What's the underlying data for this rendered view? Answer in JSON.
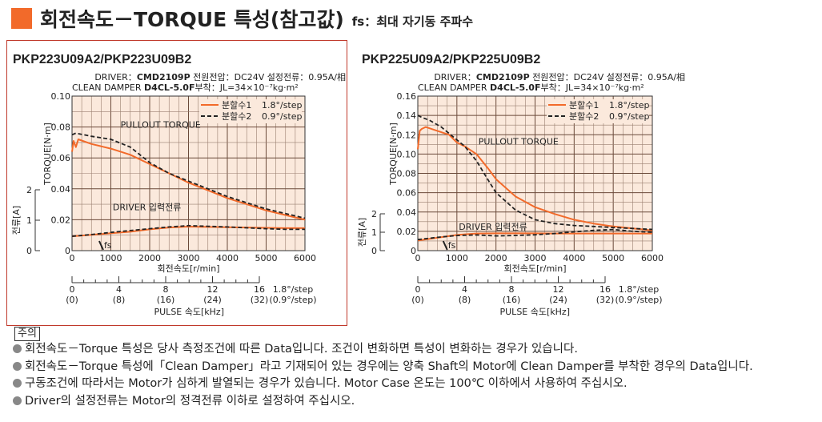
{
  "header": {
    "title": "회전속도－TORQUE 특성(참고값)",
    "subtitle": "fs：최대 자기동 주파수",
    "accent_color": "#f26a2a"
  },
  "notes": {
    "label": "주의",
    "items": [
      "회전속도－Torque 특성은 당사 측정조건에 따른 Data입니다. 조건이 변화하면 특성이 변화하는 경우가 있습니다.",
      "회전속도－Torque 특성에「Clean Damper」라고 기재되어 있는 경우에는 양축 Shaft의 Motor에 Clean Damper를 부착한 경우의 Data입니다.",
      "구동조건에 따라서는 Motor가 심하게 발열되는 경우가 있습니다. Motor Case 온도는 100℃ 이하에서 사용하여 주십시오.",
      "Driver의 설정전류는 Motor의 정격전류 이하로 설정하여 주십시오."
    ]
  },
  "chart_data": [
    {
      "type": "line",
      "title": "PKP223U09A2/PKP223U09B2",
      "driver_line": {
        "label": "DRIVER：",
        "model": "CMD2109P",
        "spec": " 전원전압：DC24V  설정전류：0.95A/相"
      },
      "damper_line": {
        "label": "CLEAN DAMPER ",
        "model": "D4CL-5.0F",
        "spec": "부착：JL=34×10⁻⁷kg·m²"
      },
      "xlabel": "회전속도[r/min]",
      "ylabel": "TORQUE[N·m]",
      "y2label": "전류[A]",
      "xlim": [
        0,
        6000
      ],
      "ylim": [
        0,
        0.1
      ],
      "x_ticks": [
        "0",
        "1000",
        "2000",
        "3000",
        "4000",
        "5000",
        "6000"
      ],
      "y_ticks": [
        "0",
        "0.02",
        "0.04",
        "0.06",
        "0.08",
        "0.10"
      ],
      "y2_ticks": [
        "0",
        "1",
        "2"
      ],
      "legend_position": "top-right",
      "legend": [
        {
          "label": "분할수1",
          "step": "1.8°/step",
          "style": "solid",
          "color": "#f26a2a"
        },
        {
          "label": "분할수2",
          "step": "0.9°/step",
          "style": "dashed",
          "color": "#222222"
        }
      ],
      "annotations": {
        "pullout": "PULLOUT TORQUE",
        "current": "DRIVER 입력전류",
        "fs": "fs"
      },
      "pulse_axis": {
        "label": "PULSE 속도[kHz]",
        "ticks": [
          {
            "a": "0",
            "b": "(0)"
          },
          {
            "a": "4",
            "b": "(8)"
          },
          {
            "a": "8",
            "b": "(16)"
          },
          {
            "a": "12",
            "b": "(24)"
          },
          {
            "a": "16",
            "b": "(32)"
          },
          {
            "a": "1.8°/step",
            "b": "(0.9°/step)"
          }
        ]
      },
      "series": [
        {
          "name": "분할수1",
          "kind": "torque",
          "x": [
            0,
            40,
            100,
            160,
            500,
            1000,
            1500,
            2000,
            2500,
            3000,
            3500,
            4000,
            4500,
            5000,
            5500,
            6000
          ],
          "y": [
            0.064,
            0.071,
            0.067,
            0.072,
            0.069,
            0.066,
            0.062,
            0.056,
            0.05,
            0.044,
            0.039,
            0.034,
            0.03,
            0.026,
            0.023,
            0.02
          ]
        },
        {
          "name": "분할수2",
          "kind": "torque",
          "x": [
            0,
            100,
            500,
            1000,
            1500,
            2000,
            2500,
            3000,
            3500,
            4000,
            4500,
            5000,
            5500,
            6000
          ],
          "y": [
            0.075,
            0.076,
            0.074,
            0.072,
            0.067,
            0.057,
            0.05,
            0.045,
            0.04,
            0.035,
            0.031,
            0.027,
            0.024,
            0.021
          ]
        },
        {
          "name": "분할수1",
          "kind": "current",
          "x": [
            0,
            500,
            1000,
            1500,
            2000,
            2500,
            3000,
            3500,
            4000,
            4500,
            5000,
            5500,
            6000
          ],
          "y": [
            0.47,
            0.52,
            0.57,
            0.62,
            0.7,
            0.76,
            0.79,
            0.78,
            0.77,
            0.76,
            0.75,
            0.74,
            0.74
          ]
        },
        {
          "name": "분할수2",
          "kind": "current",
          "x": [
            0,
            500,
            1000,
            1500,
            2000,
            2500,
            3000,
            3500,
            4000,
            4500,
            5000,
            5500,
            6000
          ],
          "y": [
            0.47,
            0.53,
            0.6,
            0.66,
            0.72,
            0.78,
            0.82,
            0.8,
            0.78,
            0.75,
            0.72,
            0.7,
            0.7
          ]
        }
      ],
      "fs_x": 700
    },
    {
      "type": "line",
      "title": "PKP225U09A2/PKP225U09B2",
      "driver_line": {
        "label": "DRIVER：",
        "model": "CMD2109P",
        "spec": " 전원전압：DC24V  설정전류：0.95A/相"
      },
      "damper_line": {
        "label": "CLEAN DAMPER ",
        "model": "D4CL-5.0F",
        "spec": "부착：JL=34×10⁻⁷kg·m²"
      },
      "xlabel": "회전속도[r/min]",
      "ylabel": "TORQUE[N·m]",
      "y2label": "전류[A]",
      "xlim": [
        0,
        6000
      ],
      "ylim": [
        0,
        0.16
      ],
      "x_ticks": [
        "0",
        "1000",
        "2000",
        "3000",
        "4000",
        "5000",
        "6000"
      ],
      "y_ticks": [
        "0",
        "0.02",
        "0.04",
        "0.06",
        "0.08",
        "0.10",
        "0.12",
        "0.14",
        "0.16"
      ],
      "y2_ticks": [
        "0",
        "1",
        "2"
      ],
      "legend_position": "top-right",
      "legend": [
        {
          "label": "분할수1",
          "step": "1.8°/step",
          "style": "solid",
          "color": "#f26a2a"
        },
        {
          "label": "분할수2",
          "step": "0.9°/step",
          "style": "dashed",
          "color": "#222222"
        }
      ],
      "annotations": {
        "pullout": "PULLOUT TORQUE",
        "current": "DRIVER 입력전류",
        "fs": "fs"
      },
      "pulse_axis": {
        "label": "PULSE 속도[kHz]",
        "ticks": [
          {
            "a": "0",
            "b": "(0)"
          },
          {
            "a": "4",
            "b": "(8)"
          },
          {
            "a": "8",
            "b": "(16)"
          },
          {
            "a": "12",
            "b": "(24)"
          },
          {
            "a": "16",
            "b": "(32)"
          },
          {
            "a": "1.8°/step",
            "b": "(0.9°/step)"
          }
        ]
      },
      "series": [
        {
          "name": "분할수1",
          "kind": "torque",
          "x": [
            0,
            50,
            100,
            200,
            500,
            800,
            1000,
            1200,
            1500,
            1800,
            2000,
            2500,
            3000,
            3500,
            4000,
            4500,
            5000,
            5500,
            6000
          ],
          "y": [
            0.105,
            0.124,
            0.126,
            0.128,
            0.124,
            0.12,
            0.112,
            0.108,
            0.1,
            0.085,
            0.074,
            0.056,
            0.045,
            0.038,
            0.032,
            0.028,
            0.025,
            0.023,
            0.021
          ]
        },
        {
          "name": "분할수2",
          "kind": "torque",
          "x": [
            0,
            100,
            300,
            600,
            900,
            1200,
            1500,
            1800,
            2000,
            2500,
            3000,
            3500,
            4000,
            4500,
            5000,
            5500,
            6000
          ],
          "y": [
            0.14,
            0.138,
            0.135,
            0.128,
            0.118,
            0.108,
            0.093,
            0.073,
            0.06,
            0.042,
            0.032,
            0.028,
            0.026,
            0.025,
            0.024,
            0.023,
            0.022
          ]
        },
        {
          "name": "분할수1",
          "kind": "current",
          "x": [
            0,
            500,
            1000,
            1500,
            2000,
            2500,
            3000,
            3500,
            4000,
            4500,
            5000,
            5500,
            6000
          ],
          "y": [
            0.55,
            0.7,
            0.85,
            0.93,
            0.94,
            0.94,
            0.94,
            0.93,
            0.93,
            0.93,
            0.93,
            0.93,
            0.93
          ]
        },
        {
          "name": "분할수2",
          "kind": "current",
          "x": [
            0,
            500,
            1000,
            1500,
            2000,
            2500,
            3000,
            3500,
            4000,
            4500,
            5000,
            5500,
            6000
          ],
          "y": [
            0.6,
            0.72,
            0.82,
            0.85,
            0.8,
            0.82,
            0.86,
            0.93,
            1.02,
            1.1,
            1.15,
            1.05,
            1.0
          ]
        }
      ],
      "fs_x": 650
    }
  ]
}
